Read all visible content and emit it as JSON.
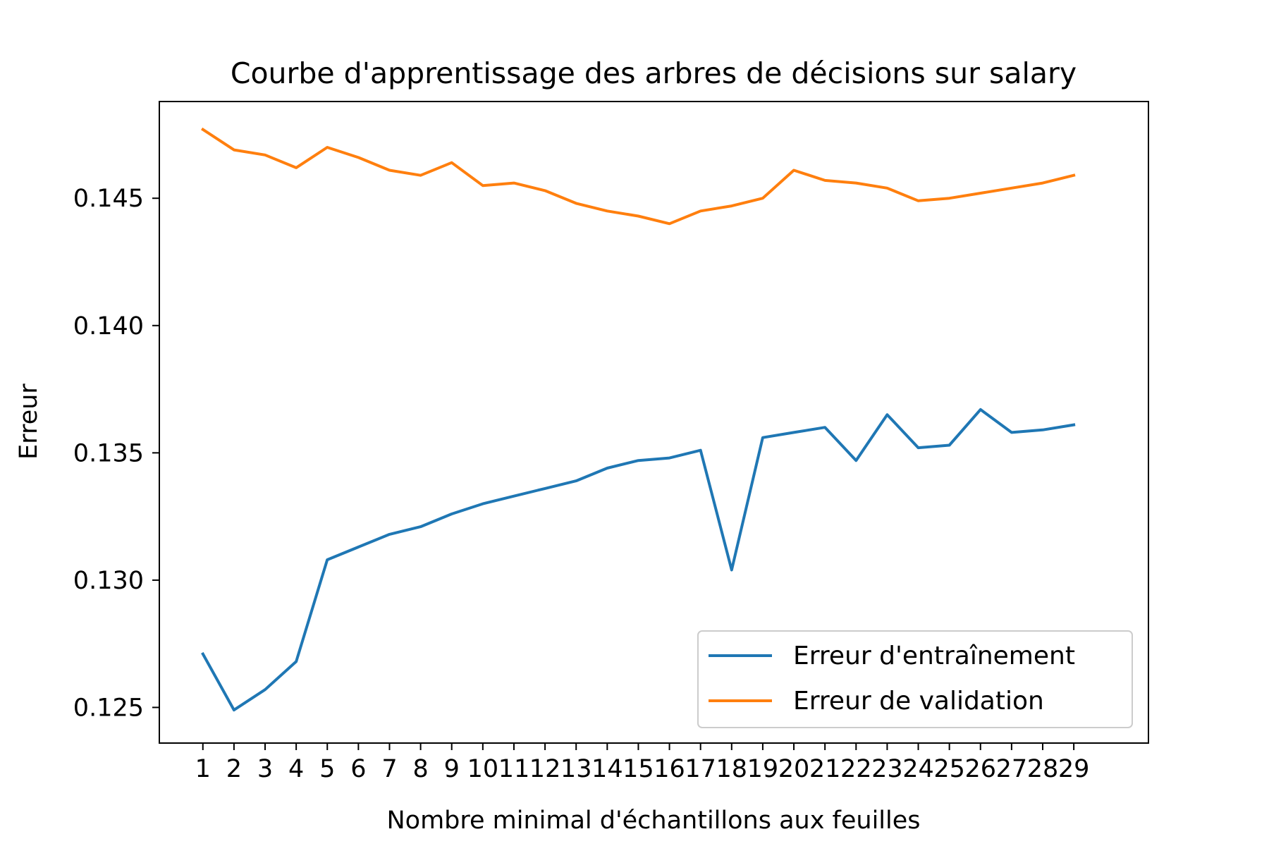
{
  "chart_data": {
    "type": "line",
    "title": "Courbe d'apprentissage des arbres de décisions sur salary",
    "xlabel": "Nombre minimal d'échantillons aux feuilles",
    "ylabel": "Erreur",
    "x": [
      1,
      2,
      3,
      4,
      5,
      6,
      7,
      8,
      9,
      10,
      11,
      12,
      13,
      14,
      15,
      16,
      17,
      18,
      19,
      20,
      21,
      22,
      23,
      24,
      25,
      26,
      27,
      28,
      29
    ],
    "xlim": [
      -0.4,
      31.4
    ],
    "ylim": [
      0.1236,
      0.1488
    ],
    "yticks": [
      0.125,
      0.13,
      0.135,
      0.14,
      0.145
    ],
    "ytick_labels": [
      "0.125",
      "0.130",
      "0.135",
      "0.140",
      "0.145"
    ],
    "grid": false,
    "legend_position": "lower right",
    "series": [
      {
        "name": "Erreur d'entraînement",
        "color": "#1f77b4",
        "values": [
          0.1271,
          0.1249,
          0.1257,
          0.1268,
          0.1308,
          0.1313,
          0.1318,
          0.1321,
          0.1326,
          0.133,
          0.1333,
          0.1336,
          0.1339,
          0.1344,
          0.1347,
          0.1348,
          0.1351,
          0.1304,
          0.1356,
          0.1358,
          0.136,
          0.1347,
          0.1365,
          0.1352,
          0.1353,
          0.1367,
          0.1358,
          0.1359,
          0.1361
        ]
      },
      {
        "name": "Erreur de validation",
        "color": "#ff7f0e",
        "values": [
          0.1477,
          0.1469,
          0.1467,
          0.1462,
          0.147,
          0.1466,
          0.1461,
          0.1459,
          0.1464,
          0.1455,
          0.1456,
          0.1453,
          0.1448,
          0.1445,
          0.1443,
          0.144,
          0.1445,
          0.1447,
          0.145,
          0.1461,
          0.1457,
          0.1456,
          0.1454,
          0.1449,
          0.145,
          0.1452,
          0.1454,
          0.1456,
          0.1459
        ]
      }
    ]
  }
}
